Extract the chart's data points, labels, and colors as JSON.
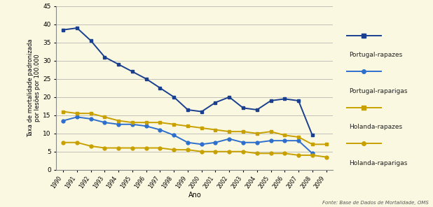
{
  "years_pt": [
    1990,
    1991,
    1992,
    1993,
    1994,
    1995,
    1996,
    1997,
    1998,
    1999,
    2000,
    2001,
    2002,
    2003,
    2004,
    2005,
    2006,
    2007,
    2008
  ],
  "years_hl": [
    1990,
    1991,
    1992,
    1993,
    1994,
    1995,
    1996,
    1997,
    1998,
    1999,
    2000,
    2001,
    2002,
    2003,
    2004,
    2005,
    2006,
    2007,
    2008,
    2009
  ],
  "portugal_rapazes": [
    38.5,
    39.0,
    35.5,
    31.0,
    29.0,
    27.0,
    25.0,
    22.5,
    20.0,
    16.5,
    16.0,
    18.5,
    20.0,
    17.0,
    16.5,
    19.0,
    19.5,
    19.0,
    9.5
  ],
  "portugal_raparigas": [
    13.5,
    14.5,
    14.0,
    13.0,
    12.5,
    12.5,
    12.0,
    11.0,
    9.5,
    7.5,
    7.0,
    7.5,
    8.5,
    7.5,
    7.5,
    8.0,
    8.0,
    8.0,
    4.5
  ],
  "holanda_rapazes": [
    16.0,
    15.5,
    15.5,
    14.5,
    13.5,
    13.0,
    13.0,
    13.0,
    12.5,
    12.0,
    11.5,
    11.0,
    10.5,
    10.5,
    10.0,
    10.5,
    9.5,
    9.0,
    7.0,
    7.0
  ],
  "holanda_raparigas": [
    7.5,
    7.5,
    6.5,
    6.0,
    6.0,
    6.0,
    6.0,
    6.0,
    5.5,
    5.5,
    5.0,
    5.0,
    5.0,
    5.0,
    4.5,
    4.5,
    4.5,
    4.0,
    4.0,
    3.5
  ],
  "color_pt_dark": "#1a3f8f",
  "color_pt_mid": "#2e6fce",
  "color_hl": "#c8a000",
  "background_color": "#faf8e0",
  "ylabel": "Taxa de mortalidade padronizada\npor lesões por 100.000",
  "xlabel": "Ano",
  "footnote": "Fonte: Base de Dados de Mortalidade, OMS",
  "ylim": [
    0,
    45
  ],
  "yticks": [
    0,
    5,
    10,
    15,
    20,
    25,
    30,
    35,
    40,
    45
  ],
  "all_years": [
    1990,
    1991,
    1992,
    1993,
    1994,
    1995,
    1996,
    1997,
    1998,
    1999,
    2000,
    2001,
    2002,
    2003,
    2004,
    2005,
    2006,
    2007,
    2008,
    2009
  ],
  "legend_labels": [
    "Portugal-rapazes",
    "Portugal-raparigas",
    "Holanda-rapazes",
    "Holanda-raparigas"
  ]
}
